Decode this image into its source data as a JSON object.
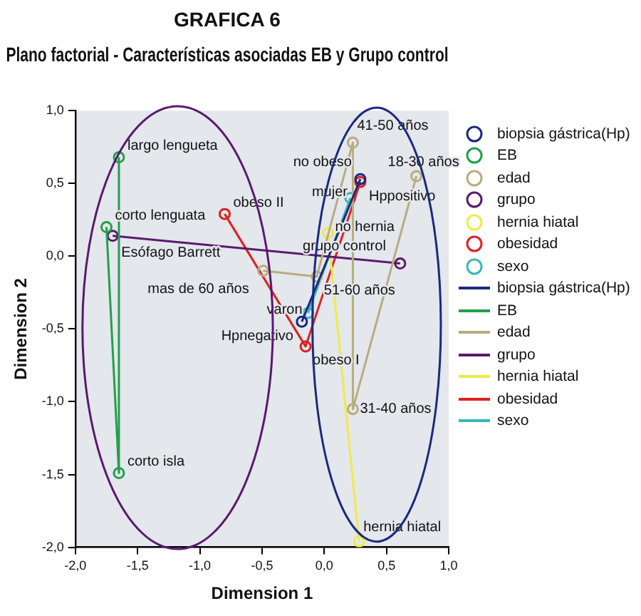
{
  "chart_data": {
    "type": "line",
    "title": "GRAFICA 6",
    "subtitle": "Plano factorial - Características asociadas EB y Grupo control",
    "xlabel": "Dimension 1",
    "ylabel": "Dimension 2",
    "marker": "circle",
    "legend": "right",
    "grid": false,
    "xlim": [
      -2,
      1
    ],
    "xticks": [
      {
        "value": -2,
        "label": "-2,0"
      },
      {
        "value": -1.5,
        "label": "-1,5"
      },
      {
        "value": -1,
        "label": "-1,0"
      },
      {
        "value": -0.5,
        "label": "-0,5"
      },
      {
        "value": 0,
        "label": "0,0"
      },
      {
        "value": 0.5,
        "label": "0,5"
      },
      {
        "value": 1,
        "label": "1,0"
      }
    ],
    "ylim": [
      -2,
      1
    ],
    "yticks": [
      {
        "value": -2,
        "label": "-2,0"
      },
      {
        "value": -1.5,
        "label": "-1,5"
      },
      {
        "value": -1,
        "label": "-1,0"
      },
      {
        "value": -0.5,
        "label": "-0,5"
      },
      {
        "value": 0,
        "label": "0,0"
      },
      {
        "value": 0.5,
        "label": "0,5"
      },
      {
        "value": 1,
        "label": "1,0"
      }
    ],
    "series": [
      {
        "name": "biopsia gástrica(Hp)",
        "color": "#1a2a80",
        "x": [
          -0.18,
          0.29
        ],
        "values": [
          -0.45,
          0.53
        ]
      },
      {
        "name": "EB",
        "color": "#22a04a",
        "x": [
          -1.75,
          -1.65,
          -1.65
        ],
        "values": [
          0.2,
          -1.49,
          0.68
        ]
      },
      {
        "name": "edad",
        "color": "#b8ad7e",
        "x": [
          -0.49,
          -0.06,
          0.23,
          0.23,
          0.74
        ],
        "values": [
          -0.1,
          -0.14,
          0.78,
          -1.05,
          0.55
        ]
      },
      {
        "name": "grupo",
        "color": "#5a1a6e",
        "x": [
          -1.7,
          0.61
        ],
        "values": [
          0.14,
          -0.05
        ]
      },
      {
        "name": "hernia hiatal",
        "color": "#f0ea4a",
        "x": [
          0.03,
          0.28
        ],
        "values": [
          0.16,
          -1.96
        ]
      },
      {
        "name": "obesidad",
        "color": "#e02020",
        "x": [
          -0.8,
          -0.15,
          0.29
        ],
        "values": [
          0.29,
          -0.62,
          0.51
        ]
      },
      {
        "name": "sexo",
        "color": "#3ab8b8",
        "x": [
          -0.13,
          0.21
        ],
        "values": [
          -0.39,
          0.4
        ]
      }
    ],
    "annotations": [
      {
        "text": "largo lengueta",
        "x": -1.65,
        "y": 0.68
      },
      {
        "text": "corto lenguata",
        "x": -1.75,
        "y": 0.2
      },
      {
        "text": "Esófago Barrett",
        "x": -1.7,
        "y": 0.14
      },
      {
        "text": "corto isla",
        "x": -1.65,
        "y": -1.49
      },
      {
        "text": "obeso II",
        "x": -0.8,
        "y": 0.29
      },
      {
        "text": "mas de 60 años",
        "x": -0.49,
        "y": -0.1
      },
      {
        "text": "Hpnegativo",
        "x": -0.18,
        "y": -0.45
      },
      {
        "text": "varon",
        "x": -0.13,
        "y": -0.39
      },
      {
        "text": "obeso I",
        "x": -0.15,
        "y": -0.62
      },
      {
        "text": "51-60 años",
        "x": -0.06,
        "y": -0.14
      },
      {
        "text": "no hernia",
        "x": 0.03,
        "y": 0.16
      },
      {
        "text": "grupo control",
        "x": 0.61,
        "y": -0.05
      },
      {
        "text": "mujer",
        "x": 0.21,
        "y": 0.4
      },
      {
        "text": "Hppositivo",
        "x": 0.29,
        "y": 0.53
      },
      {
        "text": "no obeso",
        "x": 0.29,
        "y": 0.51
      },
      {
        "text": "41-50 años",
        "x": 0.23,
        "y": 0.78
      },
      {
        "text": "18-30 años",
        "x": 0.74,
        "y": 0.55
      },
      {
        "text": "31-40 años",
        "x": 0.23,
        "y": -1.05
      },
      {
        "text": "hernia hiatal",
        "x": 0.28,
        "y": -1.96
      }
    ]
  }
}
